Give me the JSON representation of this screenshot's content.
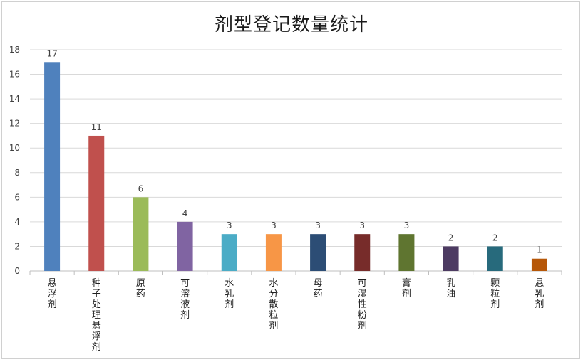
{
  "chart_data": {
    "type": "bar",
    "title": "剂型登记数量统计",
    "xlabel": "",
    "ylabel": "",
    "ylim": [
      0,
      18
    ],
    "yticks": [
      0,
      2,
      4,
      6,
      8,
      10,
      12,
      14,
      16,
      18
    ],
    "grid": true,
    "legend": "none",
    "categories": [
      "悬浮剂",
      "种子处理悬浮剂",
      "原药",
      "可溶液剂",
      "水乳剂",
      "水分散粒剂",
      "母药",
      "可湿性粉剂",
      "膏剂",
      "乳油",
      "颗粒剂",
      "悬乳剂"
    ],
    "values": [
      17,
      11,
      6,
      4,
      3,
      3,
      3,
      3,
      3,
      2,
      2,
      1
    ],
    "colors": [
      "#4f81bd",
      "#c0504d",
      "#9bbb59",
      "#8064a2",
      "#4bacc6",
      "#f79646",
      "#2c4d75",
      "#772c2a",
      "#5f7530",
      "#4d3b62",
      "#276a7c",
      "#b65708"
    ]
  }
}
